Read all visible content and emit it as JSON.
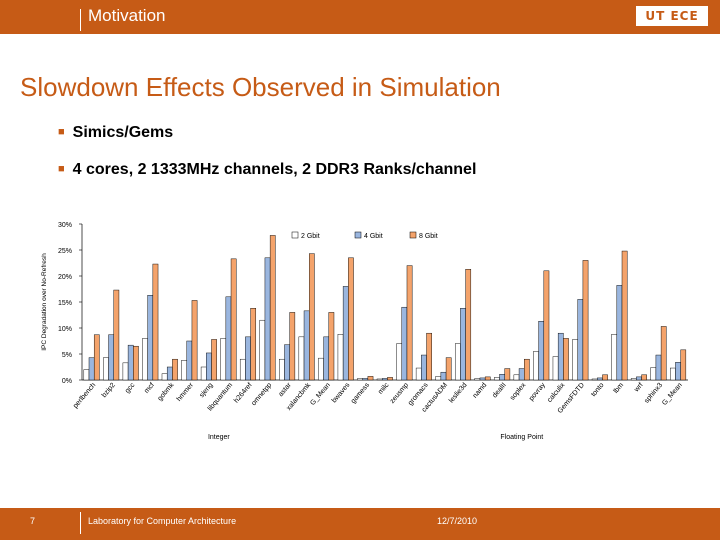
{
  "header": {
    "title": "Motivation",
    "logo_text": "UT ECE"
  },
  "slide": {
    "title": "Slowdown Effects Observed in Simulation",
    "bullets": [
      "Simics/Gems",
      "4 cores, 2 1333MHz channels, 2 DDR3 Ranks/channel"
    ]
  },
  "footer": {
    "slide_number": "7",
    "lab": "Laboratory for Computer Architecture",
    "date": "12/7/2010"
  },
  "colors": {
    "accent": "#c65b16",
    "series": [
      "#ffffff",
      "#9ab6df",
      "#f4a36b"
    ]
  },
  "chart_data": {
    "type": "bar",
    "ylabel": "IPC Degradation over No-Refresh",
    "ylim": [
      0,
      30
    ],
    "yticks": [
      0,
      5,
      10,
      15,
      20,
      25,
      30
    ],
    "ytick_labels": [
      "0%",
      "5%",
      "10%",
      "15%",
      "20%",
      "25%",
      "30%"
    ],
    "legend_position": "top",
    "groups": [
      {
        "label": "Integer",
        "start": 0,
        "end": 13
      },
      {
        "label": "Floating Point",
        "start": 14,
        "end": 30
      }
    ],
    "categories": [
      "perlbench",
      "bzip2",
      "gcc",
      "mcf",
      "gobmk",
      "hmmer",
      "sjeng",
      "libquantum",
      "h264ref",
      "omnetpp",
      "astar",
      "xalancbmk",
      "G_Mean",
      "bwaves",
      "gamess",
      "milc",
      "zeusmp",
      "gromacs",
      "cactusADM",
      "leslie3d",
      "namd",
      "dealII",
      "soplex",
      "povray",
      "calculix",
      "GemsFDTD",
      "tonto",
      "lbm",
      "wrf",
      "sphinx3",
      "G_Mean"
    ],
    "series": [
      {
        "name": "2 Gbit",
        "values": [
          2.0,
          4.3,
          3.3,
          8.0,
          1.2,
          3.8,
          2.5,
          8.0,
          4.0,
          11.5,
          4.0,
          8.3,
          4.2,
          8.8,
          0.3,
          0.2,
          7.0,
          2.3,
          0.7,
          7.0,
          0.3,
          0.5,
          1.0,
          5.5,
          4.5,
          7.8,
          0.2,
          8.8,
          0.3,
          2.4,
          2.3
        ]
      },
      {
        "name": "4 Gbit",
        "values": [
          4.3,
          8.7,
          6.7,
          16.3,
          2.5,
          7.5,
          5.2,
          16.0,
          8.3,
          23.5,
          6.8,
          13.3,
          8.3,
          18.0,
          0.3,
          0.3,
          14.0,
          4.8,
          1.5,
          13.8,
          0.4,
          1.1,
          2.2,
          11.3,
          9.0,
          15.5,
          0.4,
          18.2,
          0.6,
          4.8,
          3.4
        ]
      },
      {
        "name": "8 Gbit",
        "values": [
          8.7,
          17.3,
          6.5,
          22.3,
          4.0,
          15.3,
          7.8,
          23.3,
          13.8,
          27.8,
          13.0,
          24.3,
          13.0,
          23.5,
          0.7,
          0.5,
          22.0,
          9.0,
          4.3,
          21.3,
          0.6,
          2.2,
          4.0,
          21.0,
          8.0,
          23.0,
          1.0,
          24.8,
          1.0,
          10.3,
          5.8
        ]
      }
    ]
  }
}
